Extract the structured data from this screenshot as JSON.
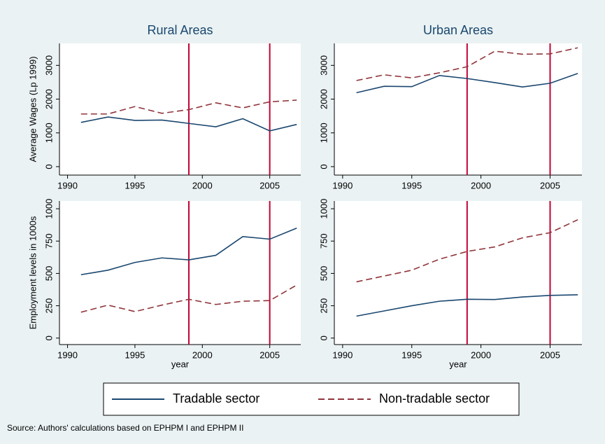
{
  "chart_data": [
    {
      "type": "line",
      "title": "Rural Areas",
      "y_label": "Average Wages (Lp 1999)",
      "x": [
        1991,
        1993,
        1995,
        1997,
        1999,
        2001,
        2003,
        2005,
        2007
      ],
      "series": [
        {
          "name": "Tradable sector",
          "color": "#1a476f",
          "dash": false,
          "values": [
            1310,
            1470,
            1370,
            1380,
            1280,
            1180,
            1420,
            1060,
            1250
          ]
        },
        {
          "name": "Non-tradable sector",
          "color": "#90353b",
          "dash": true,
          "values": [
            1560,
            1560,
            1780,
            1580,
            1690,
            1890,
            1740,
            1920,
            1970
          ]
        }
      ],
      "xlim": [
        1989.4,
        2007.3
      ],
      "ylim": [
        -250,
        3650
      ],
      "xticks": [
        1990,
        1995,
        2000,
        2005
      ],
      "yticks": [
        0,
        1000,
        2000,
        3000
      ],
      "vlines": [
        1999,
        2005
      ],
      "vline_color": "#c10534"
    },
    {
      "type": "line",
      "title": "Urban Areas",
      "x": [
        1991,
        1993,
        1995,
        1997,
        1999,
        2001,
        2003,
        2005,
        2007
      ],
      "series": [
        {
          "color": "#1a476f",
          "dash": false,
          "values": [
            2190,
            2380,
            2370,
            2700,
            2610,
            2490,
            2360,
            2470,
            2760
          ]
        },
        {
          "color": "#90353b",
          "dash": true,
          "values": [
            2550,
            2720,
            2630,
            2780,
            2960,
            3420,
            3330,
            3340,
            3520
          ]
        }
      ],
      "xlim": [
        1989.4,
        2007.3
      ],
      "ylim": [
        -250,
        3650
      ],
      "xticks": [
        1990,
        1995,
        2000,
        2005
      ],
      "yticks": [
        0,
        1000,
        2000,
        3000
      ],
      "vlines": [
        1999,
        2005
      ],
      "vline_color": "#c10534"
    },
    {
      "type": "line",
      "y_label": "Employment levels in 1000s",
      "x_label": "year",
      "x": [
        1991,
        1993,
        1995,
        1997,
        1999,
        2001,
        2003,
        2005,
        2007
      ],
      "series": [
        {
          "color": "#1a476f",
          "dash": false,
          "values": [
            490,
            525,
            585,
            620,
            605,
            640,
            785,
            765,
            850
          ]
        },
        {
          "color": "#90353b",
          "dash": true,
          "values": [
            200,
            255,
            205,
            255,
            300,
            260,
            285,
            290,
            410
          ]
        }
      ],
      "xlim": [
        1989.4,
        2007.3
      ],
      "ylim": [
        -50,
        1060
      ],
      "xticks": [
        1990,
        1995,
        2000,
        2005
      ],
      "yticks": [
        0,
        250,
        500,
        750,
        1000
      ],
      "vlines": [
        1999,
        2005
      ],
      "vline_color": "#c10534"
    },
    {
      "type": "line",
      "x_label": "year",
      "x": [
        1991,
        1993,
        1995,
        1997,
        1999,
        2001,
        2003,
        2005,
        2007
      ],
      "series": [
        {
          "color": "#1a476f",
          "dash": false,
          "values": [
            170,
            210,
            250,
            285,
            300,
            298,
            318,
            330,
            335
          ]
        },
        {
          "color": "#90353b",
          "dash": true,
          "values": [
            435,
            480,
            525,
            610,
            670,
            705,
            775,
            815,
            915
          ]
        }
      ],
      "xlim": [
        1989.4,
        2007.3
      ],
      "ylim": [
        -50,
        1060
      ],
      "xticks": [
        1990,
        1995,
        2000,
        2005
      ],
      "yticks": [
        0,
        250,
        500,
        750,
        1000
      ],
      "vlines": [
        1999,
        2005
      ],
      "vline_color": "#c10534"
    }
  ],
  "source": "Source: Authors' calculations based on EPHPM I and EPHPM II"
}
